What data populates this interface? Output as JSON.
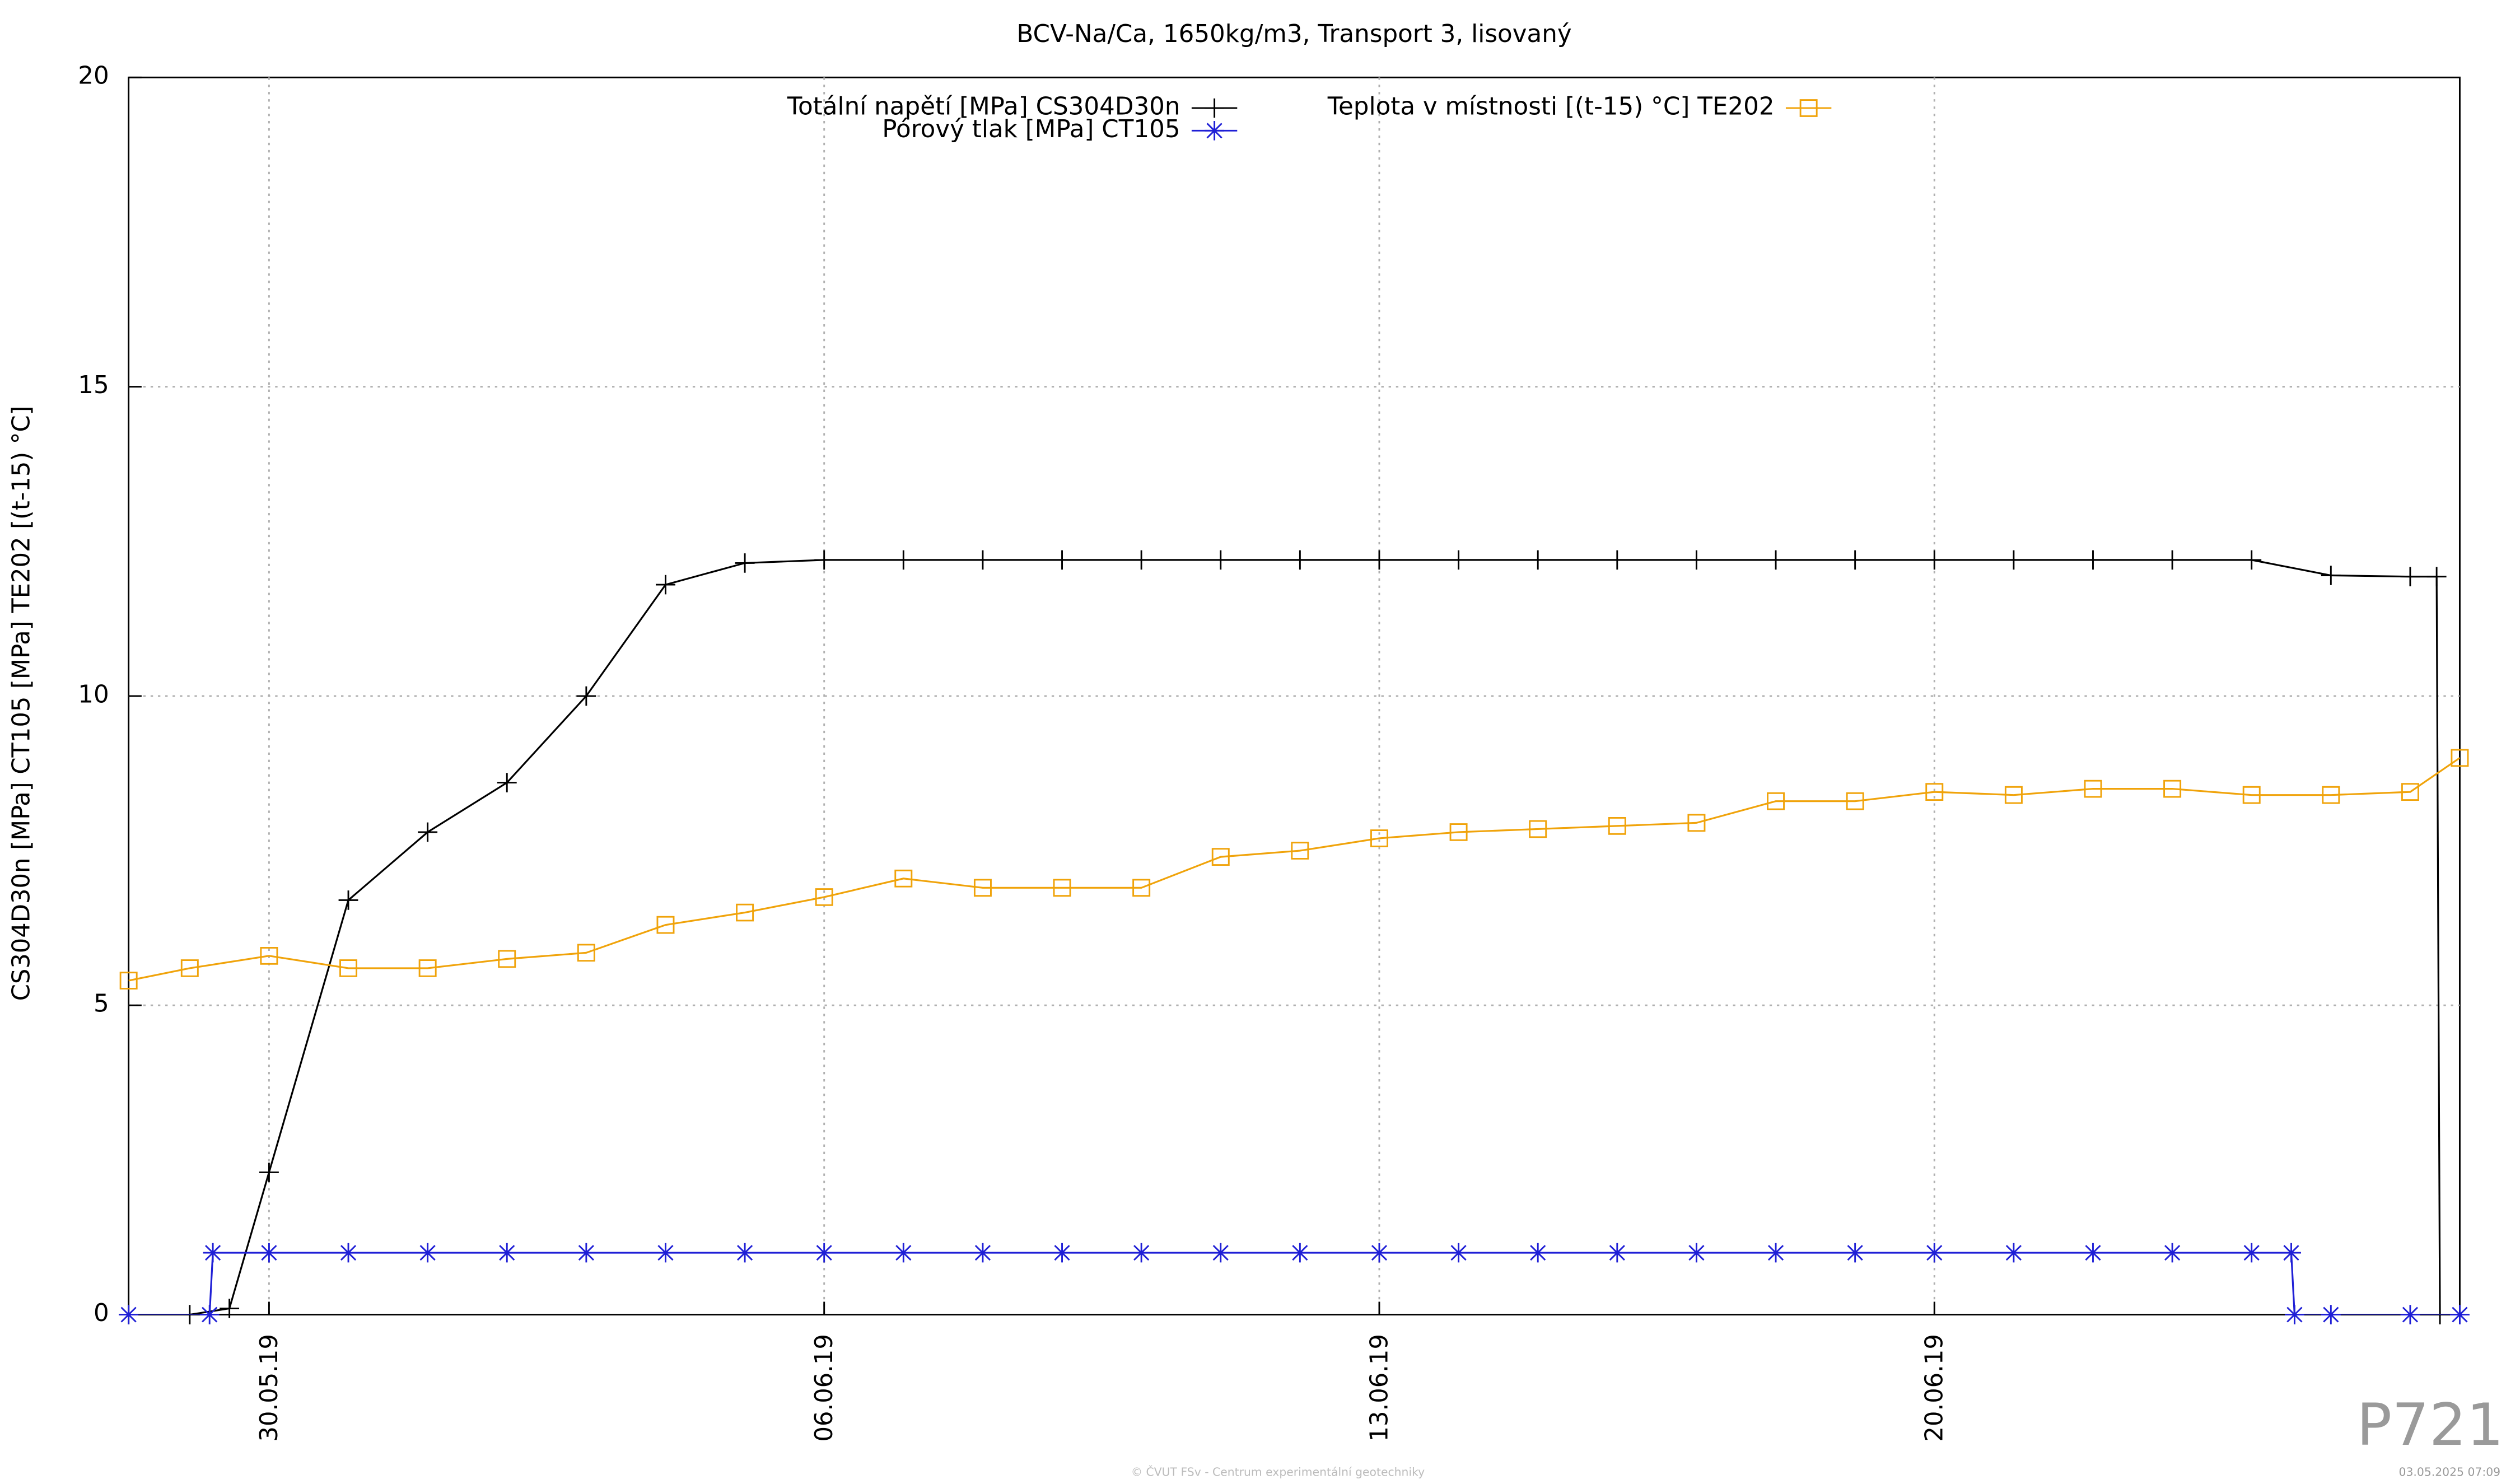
{
  "chart_data": {
    "type": "line",
    "title": "BCV-Na/Ca, 1650kg/m3, Transport 3, lisovaný",
    "y_label": "CS304D30n [MPa] CT105 [MPa] TE202 [(t-15) °C]",
    "watermark": "P721",
    "footer": "© ČVUT FSv - Centrum experimentální geotechniky",
    "timestamp": "03.05.2025 07:09",
    "xlim": [
      "2019-05-28T05:30",
      "2019-06-26T15:00"
    ],
    "xticks": [
      {
        "value": "2019-05-30",
        "label": "30.05.19"
      },
      {
        "value": "2019-06-06",
        "label": "06.06.19"
      },
      {
        "value": "2019-06-13",
        "label": "13.06.19"
      },
      {
        "value": "2019-06-20",
        "label": "20.06.19"
      }
    ],
    "ylim": [
      0,
      20
    ],
    "yticks": [
      0,
      5,
      10,
      15,
      20
    ],
    "grid": true,
    "legend": "top",
    "series": [
      {
        "name": "Totální napětí [MPa] CS304D30n",
        "color": "#000000",
        "marker": "plus",
        "x": [
          "2019-05-28T05:30",
          "2019-05-29",
          "2019-05-29T12:00",
          "2019-05-30",
          "2019-05-31",
          "2019-06-01",
          "2019-06-02",
          "2019-06-03",
          "2019-06-04",
          "2019-06-05",
          "2019-06-06",
          "2019-06-07",
          "2019-06-08",
          "2019-06-09",
          "2019-06-10",
          "2019-06-11",
          "2019-06-12",
          "2019-06-13",
          "2019-06-14",
          "2019-06-15",
          "2019-06-16",
          "2019-06-17",
          "2019-06-18",
          "2019-06-19",
          "2019-06-20",
          "2019-06-21",
          "2019-06-22",
          "2019-06-23",
          "2019-06-24",
          "2019-06-25",
          "2019-06-26",
          "2019-06-26T08:00",
          "2019-06-26T09:00"
        ],
        "values": [
          0,
          0,
          0.1,
          2.3,
          6.7,
          7.8,
          8.6,
          10.0,
          11.8,
          12.15,
          12.2,
          12.2,
          12.2,
          12.2,
          12.2,
          12.2,
          12.2,
          12.2,
          12.2,
          12.2,
          12.2,
          12.2,
          12.2,
          12.2,
          12.2,
          12.2,
          12.2,
          12.2,
          12.2,
          11.95,
          11.93,
          11.93,
          0
        ]
      },
      {
        "name": "Pórový tlak [MPa] CT105",
        "color": "#1f1fd6",
        "marker": "star",
        "x": [
          "2019-05-28T05:30",
          "2019-05-29T06:00",
          "2019-05-29T07:00",
          "2019-05-30",
          "2019-05-31",
          "2019-06-01",
          "2019-06-02",
          "2019-06-03",
          "2019-06-04",
          "2019-06-05",
          "2019-06-06",
          "2019-06-07",
          "2019-06-08",
          "2019-06-09",
          "2019-06-10",
          "2019-06-11",
          "2019-06-12",
          "2019-06-13",
          "2019-06-14",
          "2019-06-15",
          "2019-06-16",
          "2019-06-17",
          "2019-06-18",
          "2019-06-19",
          "2019-06-20",
          "2019-06-21",
          "2019-06-22",
          "2019-06-23",
          "2019-06-24",
          "2019-06-24T12:00",
          "2019-06-24T13:00",
          "2019-06-25",
          "2019-06-26",
          "2019-06-26T15:00"
        ],
        "values": [
          0,
          0,
          1,
          1,
          1,
          1,
          1,
          1,
          1,
          1,
          1,
          1,
          1,
          1,
          1,
          1,
          1,
          1,
          1,
          1,
          1,
          1,
          1,
          1,
          1,
          1,
          1,
          1,
          1,
          1,
          0,
          0,
          0,
          0
        ]
      },
      {
        "name": "Teplota v místnosti [(t-15) °C] TE202",
        "color": "#f0a30a",
        "marker": "square",
        "x": [
          "2019-05-28T05:30",
          "2019-05-29",
          "2019-05-30",
          "2019-05-31",
          "2019-06-01",
          "2019-06-02",
          "2019-06-03",
          "2019-06-04",
          "2019-06-05",
          "2019-06-06",
          "2019-06-07",
          "2019-06-08",
          "2019-06-09",
          "2019-06-10",
          "2019-06-11",
          "2019-06-12",
          "2019-06-13",
          "2019-06-14",
          "2019-06-15",
          "2019-06-16",
          "2019-06-17",
          "2019-06-18",
          "2019-06-19",
          "2019-06-20",
          "2019-06-21",
          "2019-06-22",
          "2019-06-23",
          "2019-06-24",
          "2019-06-25",
          "2019-06-26",
          "2019-06-26T15:00"
        ],
        "values": [
          5.4,
          5.6,
          5.8,
          5.6,
          5.6,
          5.75,
          5.85,
          6.3,
          6.5,
          6.75,
          7.05,
          6.9,
          6.9,
          6.9,
          7.4,
          7.5,
          7.7,
          7.8,
          7.85,
          7.9,
          7.95,
          8.3,
          8.3,
          8.45,
          8.4,
          8.5,
          8.5,
          8.4,
          8.4,
          8.45,
          9.0
        ]
      }
    ]
  }
}
